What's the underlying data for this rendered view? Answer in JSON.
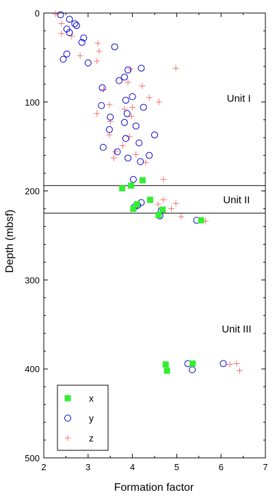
{
  "chart_data": {
    "type": "scatter",
    "title": "",
    "xlabel": "Formation factor",
    "ylabel": "Depth (mbsf)",
    "xlim": [
      2,
      7
    ],
    "ylim": [
      0,
      500
    ],
    "y_inverted": true,
    "x_ticks": [
      "2",
      "3",
      "4",
      "5",
      "6",
      "7"
    ],
    "y_ticks": [
      "0",
      "100",
      "200",
      "300",
      "400",
      "500"
    ],
    "grid": false,
    "legend_position": "bottom-left",
    "colors": {
      "x": "#33ee33",
      "y": "#0000cc",
      "z": "#ee6666",
      "frame": "#000000"
    },
    "unit_boundaries": [
      194,
      225
    ],
    "unit_labels": [
      {
        "text": "Unit I",
        "x": 6.4,
        "y": 96
      },
      {
        "text": "Unit II",
        "x": 6.35,
        "y": 210
      },
      {
        "text": "Unit III",
        "x": 6.35,
        "y": 355
      }
    ],
    "series": [
      {
        "name": "x",
        "marker": "square",
        "points": [
          [
            4.23,
            188
          ],
          [
            3.77,
            197
          ],
          [
            3.97,
            194
          ],
          [
            4.4,
            210
          ],
          [
            4.1,
            215
          ],
          [
            4.02,
            220
          ],
          [
            4.68,
            221
          ],
          [
            4.59,
            227
          ],
          [
            5.55,
            233
          ],
          [
            4.75,
            395
          ],
          [
            5.36,
            394
          ],
          [
            4.78,
            402
          ]
        ]
      },
      {
        "name": "y",
        "marker": "circle",
        "points": [
          [
            2.38,
            2
          ],
          [
            2.58,
            7
          ],
          [
            2.7,
            12
          ],
          [
            2.74,
            14
          ],
          [
            2.52,
            18
          ],
          [
            2.58,
            22
          ],
          [
            2.9,
            28
          ],
          [
            2.86,
            33
          ],
          [
            3.6,
            38
          ],
          [
            2.52,
            46
          ],
          [
            2.44,
            52
          ],
          [
            3.0,
            56
          ],
          [
            4.2,
            62
          ],
          [
            3.9,
            64
          ],
          [
            3.82,
            72
          ],
          [
            3.7,
            76
          ],
          [
            3.32,
            84
          ],
          [
            4.0,
            94
          ],
          [
            3.85,
            98
          ],
          [
            4.25,
            106
          ],
          [
            3.3,
            104
          ],
          [
            3.88,
            113
          ],
          [
            3.5,
            117
          ],
          [
            3.82,
            123
          ],
          [
            3.48,
            131
          ],
          [
            4.08,
            127
          ],
          [
            4.5,
            137
          ],
          [
            3.85,
            141
          ],
          [
            4.15,
            146
          ],
          [
            3.34,
            151
          ],
          [
            3.66,
            156
          ],
          [
            4.38,
            160
          ],
          [
            3.9,
            163
          ],
          [
            4.18,
            167
          ],
          [
            4.02,
            187
          ],
          [
            4.12,
            216
          ],
          [
            4.2,
            213
          ],
          [
            4.05,
            218
          ],
          [
            4.65,
            222
          ],
          [
            4.62,
            228
          ],
          [
            5.45,
            233
          ],
          [
            5.25,
            394
          ],
          [
            5.35,
            401
          ],
          [
            6.05,
            394
          ]
        ]
      },
      {
        "name": "z",
        "marker": "plus",
        "points": [
          [
            2.27,
            1
          ],
          [
            2.4,
            12
          ],
          [
            2.4,
            23
          ],
          [
            2.63,
            26
          ],
          [
            3.22,
            34
          ],
          [
            3.25,
            43
          ],
          [
            2.82,
            48
          ],
          [
            3.2,
            54
          ],
          [
            4.98,
            62
          ],
          [
            3.95,
            63
          ],
          [
            3.9,
            78
          ],
          [
            4.22,
            82
          ],
          [
            3.35,
            86
          ],
          [
            4.38,
            95
          ],
          [
            4.6,
            100
          ],
          [
            3.2,
            113
          ],
          [
            3.48,
            103
          ],
          [
            3.82,
            108
          ],
          [
            4.0,
            106
          ],
          [
            3.5,
            122
          ],
          [
            3.98,
            116
          ],
          [
            3.48,
            137
          ],
          [
            3.93,
            139
          ],
          [
            3.78,
            149
          ],
          [
            3.62,
            156
          ],
          [
            3.58,
            163
          ],
          [
            4.08,
            159
          ],
          [
            4.3,
            168
          ],
          [
            4.7,
            187
          ],
          [
            4.58,
            215
          ],
          [
            4.98,
            214
          ],
          [
            4.88,
            220
          ],
          [
            5.1,
            229
          ],
          [
            5.65,
            234
          ],
          [
            4.7,
            210
          ],
          [
            6.2,
            395
          ],
          [
            6.35,
            394
          ],
          [
            6.42,
            402
          ]
        ]
      }
    ]
  }
}
